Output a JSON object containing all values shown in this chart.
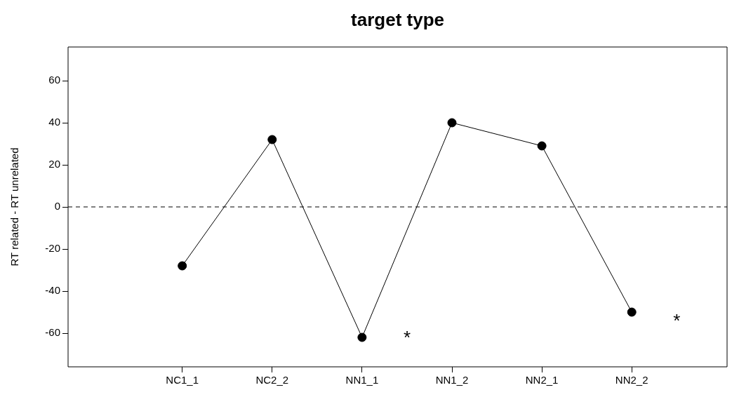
{
  "chart_data": {
    "type": "line",
    "title": "target type",
    "ylabel": "RT related - RT unrelated",
    "categories": [
      "NC1_1",
      "NC2_2",
      "NN1_1",
      "NN1_2",
      "NN2_1",
      "NN2_2"
    ],
    "series": [
      {
        "color": "#000000",
        "values": [
          -28,
          32,
          -62,
          40,
          29,
          -50
        ]
      }
    ],
    "ylim": [
      -76,
      76
    ],
    "yticks": [
      -60,
      -40,
      -20,
      0,
      20,
      40,
      60
    ],
    "grid": false,
    "legend": false,
    "marker": "circle",
    "line_style": "solid",
    "ref_lines": [
      {
        "axis": "y",
        "value": 0,
        "color": "#000000",
        "line_style": "dashed"
      }
    ],
    "annotations": [
      {
        "text": "*",
        "x": "NN1_1",
        "y": -60
      },
      {
        "text": "*",
        "x": "NN2_2",
        "y": -52
      }
    ]
  }
}
